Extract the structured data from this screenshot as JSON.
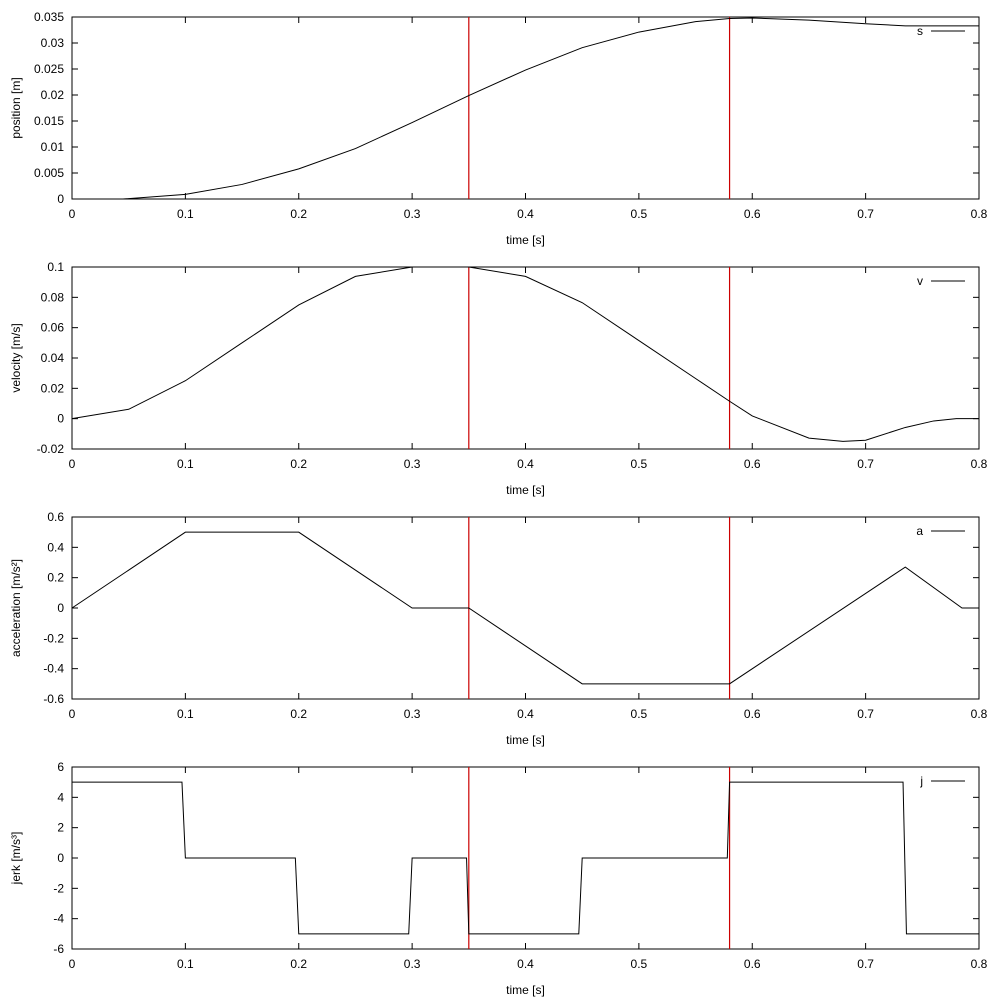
{
  "chart_data": [
    {
      "type": "line",
      "xlabel": "time [s]",
      "ylabel": "position [m]",
      "xlim": [
        0,
        0.8
      ],
      "ylim": [
        0,
        0.035
      ],
      "xticks": [
        0,
        0.1,
        0.2,
        0.3,
        0.4,
        0.5,
        0.6,
        0.7,
        0.8
      ],
      "xtick_labels": [
        "0",
        "0.1",
        "0.2",
        "0.3",
        "0.4",
        "0.5",
        "0.6",
        "0.7",
        "0.8"
      ],
      "yticks": [
        0,
        0.005,
        0.01,
        0.015,
        0.02,
        0.025,
        0.03,
        0.035
      ],
      "ytick_labels": [
        "0",
        "0.005",
        "0.01",
        "0.015",
        "0.02",
        "0.025",
        "0.03",
        "0.035"
      ],
      "legend": "top-right",
      "grid": false,
      "vlines": [
        0.35,
        0.58
      ],
      "series": [
        {
          "name": "s",
          "x": [
            0.045,
            0.1,
            0.15,
            0.2,
            0.25,
            0.3,
            0.35,
            0.4,
            0.45,
            0.5,
            0.55,
            0.58,
            0.6,
            0.65,
            0.7,
            0.735,
            0.8
          ],
          "values": [
            0.0,
            0.0009,
            0.0028,
            0.0058,
            0.0097,
            0.0147,
            0.0199,
            0.0248,
            0.0291,
            0.0321,
            0.0341,
            0.0347,
            0.0348,
            0.0344,
            0.0337,
            0.0333,
            0.0333
          ]
        }
      ]
    },
    {
      "type": "line",
      "xlabel": "time [s]",
      "ylabel": "velocity [m/s]",
      "xlim": [
        0,
        0.8
      ],
      "ylim": [
        -0.02,
        0.1
      ],
      "xticks": [
        0,
        0.1,
        0.2,
        0.3,
        0.4,
        0.5,
        0.6,
        0.7,
        0.8
      ],
      "xtick_labels": [
        "0",
        "0.1",
        "0.2",
        "0.3",
        "0.4",
        "0.5",
        "0.6",
        "0.7",
        "0.8"
      ],
      "yticks": [
        -0.02,
        0,
        0.02,
        0.04,
        0.06,
        0.08,
        0.1
      ],
      "ytick_labels": [
        "-0.02",
        "0",
        "0.02",
        "0.04",
        "0.06",
        "0.08",
        "0.1"
      ],
      "legend": "top-right",
      "grid": false,
      "vlines": [
        0.35,
        0.58
      ],
      "series": [
        {
          "name": "v",
          "x": [
            0,
            0.05,
            0.1,
            0.15,
            0.2,
            0.25,
            0.3,
            0.35,
            0.4,
            0.45,
            0.5,
            0.55,
            0.58,
            0.6,
            0.65,
            0.68,
            0.7,
            0.735,
            0.76,
            0.78,
            0.8
          ],
          "values": [
            0,
            0.0062,
            0.025,
            0.05,
            0.075,
            0.0938,
            0.1,
            0.1,
            0.0938,
            0.0765,
            0.0515,
            0.0265,
            0.0115,
            0.0018,
            -0.0128,
            -0.015,
            -0.0142,
            -0.0058,
            -0.0015,
            0.0,
            0.0
          ]
        }
      ]
    },
    {
      "type": "line",
      "xlabel": "time [s]",
      "ylabel": "acceleration [m/s²]",
      "xlim": [
        0,
        0.8
      ],
      "ylim": [
        -0.6,
        0.6
      ],
      "xticks": [
        0,
        0.1,
        0.2,
        0.3,
        0.4,
        0.5,
        0.6,
        0.7,
        0.8
      ],
      "xtick_labels": [
        "0",
        "0.1",
        "0.2",
        "0.3",
        "0.4",
        "0.5",
        "0.6",
        "0.7",
        "0.8"
      ],
      "yticks": [
        -0.6,
        -0.4,
        -0.2,
        0,
        0.2,
        0.4,
        0.6
      ],
      "ytick_labels": [
        "-0.6",
        "-0.4",
        "-0.2",
        "0",
        "0.2",
        "0.4",
        "0.6"
      ],
      "legend": "top-right",
      "grid": false,
      "vlines": [
        0.35,
        0.58
      ],
      "series": [
        {
          "name": "a",
          "x": [
            0,
            0.1,
            0.2,
            0.3,
            0.35,
            0.45,
            0.58,
            0.735,
            0.785,
            0.8
          ],
          "values": [
            0,
            0.5,
            0.5,
            0,
            0,
            -0.5,
            -0.5,
            0.27,
            0,
            0
          ]
        }
      ]
    },
    {
      "type": "line",
      "xlabel": "time [s]",
      "ylabel": "jerk [m/s³]",
      "xlim": [
        0,
        0.8
      ],
      "ylim": [
        -6,
        6
      ],
      "xticks": [
        0,
        0.1,
        0.2,
        0.3,
        0.4,
        0.5,
        0.6,
        0.7,
        0.8
      ],
      "xtick_labels": [
        "0",
        "0.1",
        "0.2",
        "0.3",
        "0.4",
        "0.5",
        "0.6",
        "0.7",
        "0.8"
      ],
      "yticks": [
        -6,
        -4,
        -2,
        0,
        2,
        4,
        6
      ],
      "ytick_labels": [
        "-6",
        "-4",
        "-2",
        "0",
        "2",
        "4",
        "6"
      ],
      "legend": "top-right",
      "grid": false,
      "vlines": [
        0.35,
        0.58
      ],
      "series": [
        {
          "name": "j",
          "x": [
            0,
            0.097,
            0.1,
            0.197,
            0.2,
            0.297,
            0.3,
            0.348,
            0.35,
            0.447,
            0.45,
            0.578,
            0.58,
            0.733,
            0.736,
            0.8
          ],
          "values": [
            5,
            5,
            0,
            0,
            -5,
            -5,
            0,
            0,
            -5,
            -5,
            0,
            0,
            5,
            5,
            -5,
            -5
          ]
        }
      ]
    }
  ],
  "colors": {
    "curve": "#000000",
    "marker": "#cc0000",
    "frame": "#000000"
  }
}
